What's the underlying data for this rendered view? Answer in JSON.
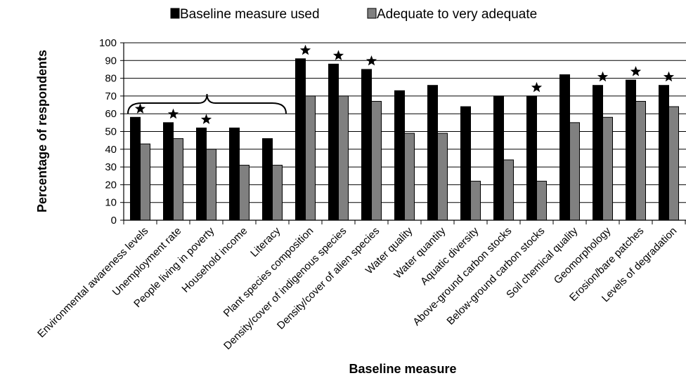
{
  "chart_data": {
    "type": "bar",
    "title": "",
    "xlabel": "Baseline measure",
    "ylabel": "Percentage of respondents",
    "ylim": [
      0,
      100
    ],
    "yticks": [
      0,
      10,
      20,
      30,
      40,
      50,
      60,
      70,
      80,
      90,
      100
    ],
    "grid": "horizontal",
    "legend_position": "top",
    "categories": [
      "Environmental awareness levels",
      "Unemployment rate",
      "People living in poverty",
      "Household income",
      "Literacy",
      "Plant species composition",
      "Density/cover of indigenous species",
      "Density/cover of alien species",
      "Water quality",
      "Water quantity",
      "Aquatic diversity",
      "Above-ground carbon stocks",
      "Below-ground carbon stocks",
      "Soil chemical quality",
      "Geomorphology",
      "Erosion/bare patches",
      "Levels of degradation"
    ],
    "series": [
      {
        "name": "Baseline measure used",
        "color": "#000000",
        "values": [
          58,
          55,
          52,
          52,
          46,
          91,
          88,
          85,
          73,
          76,
          64,
          70,
          70,
          82,
          76,
          79,
          76
        ]
      },
      {
        "name": "Adequate to very adequate",
        "color": "#808080",
        "values": [
          43,
          46,
          40,
          31,
          31,
          70,
          70,
          67,
          49,
          49,
          22,
          34,
          22,
          55,
          58,
          67,
          64
        ]
      }
    ],
    "starred": [
      true,
      true,
      true,
      false,
      false,
      true,
      true,
      true,
      false,
      false,
      false,
      false,
      true,
      false,
      true,
      true,
      true
    ],
    "brace_span": [
      0,
      4
    ]
  }
}
